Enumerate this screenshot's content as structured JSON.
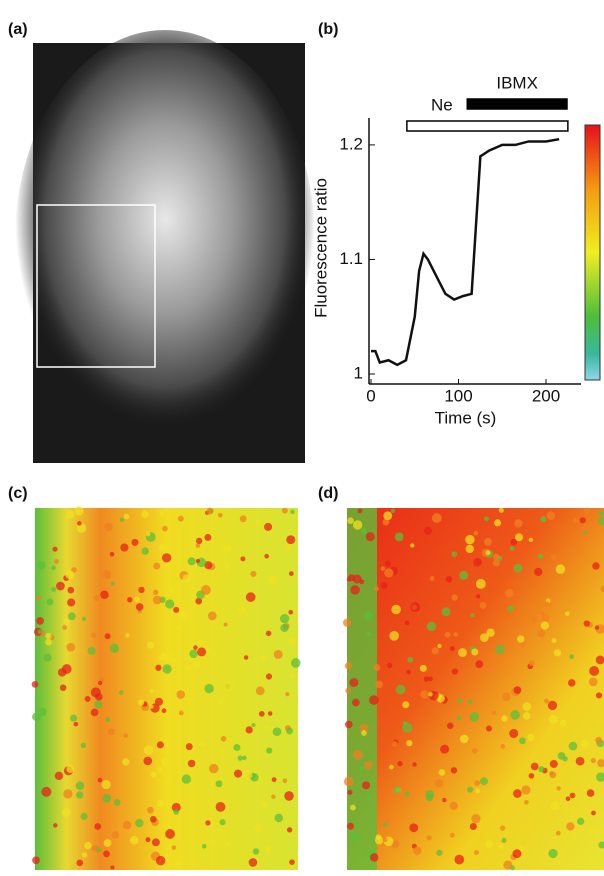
{
  "panels": [
    "(a)",
    "(b)",
    "(c)",
    "(d)"
  ],
  "chart_data": {
    "type": "line",
    "x_label": "Time (s)",
    "y_label": "Fluorescence ratio",
    "x": [
      0,
      5,
      10,
      20,
      30,
      40,
      50,
      55,
      60,
      65,
      75,
      85,
      95,
      105,
      115,
      120,
      125,
      135,
      150,
      165,
      180,
      200,
      215
    ],
    "values": [
      1.02,
      1.02,
      1.01,
      1.012,
      1.008,
      1.012,
      1.05,
      1.09,
      1.105,
      1.1,
      1.085,
      1.07,
      1.065,
      1.068,
      1.07,
      1.13,
      1.19,
      1.195,
      1.2,
      1.2,
      1.203,
      1.203,
      1.205
    ],
    "color": "#111111",
    "xlim": [
      0,
      240
    ],
    "ylim": [
      1,
      1.22
    ],
    "xticks": [
      0,
      100,
      200
    ],
    "yticks": [
      1,
      1.1,
      1.2
    ],
    "treatments": [
      {
        "label": "Ne",
        "start": 41,
        "end": 225,
        "fill": "open"
      },
      {
        "label": "IBMX",
        "start": 110,
        "end": 224,
        "fill": "solid"
      }
    ]
  }
}
